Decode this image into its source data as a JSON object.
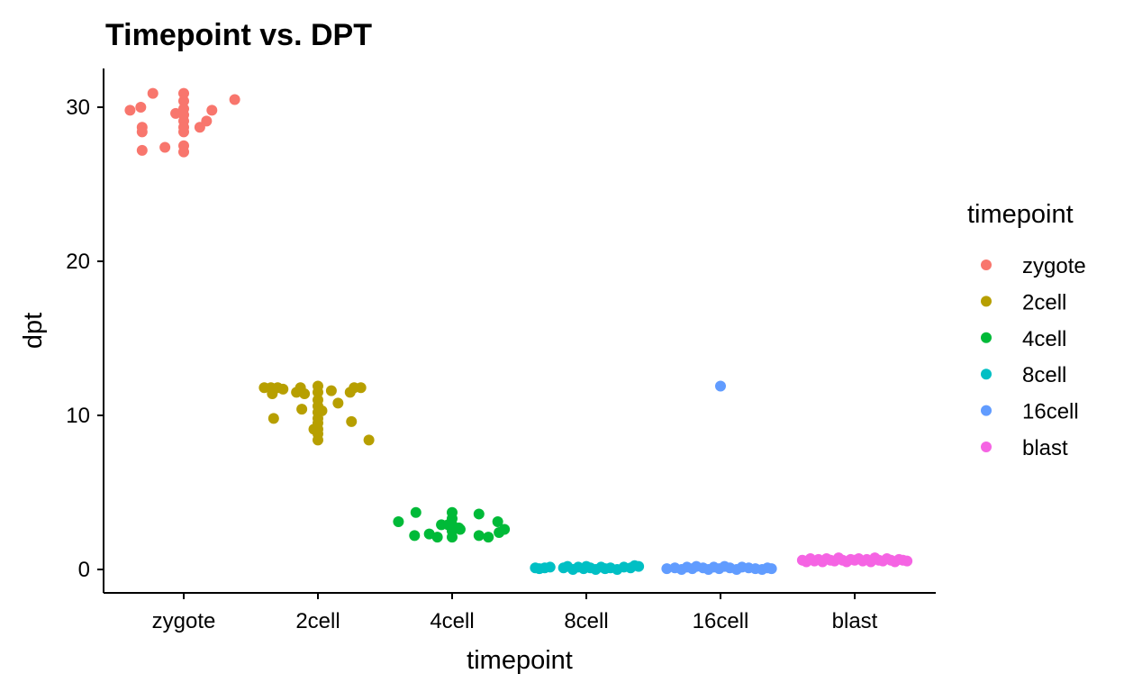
{
  "chart_data": {
    "type": "scatter",
    "title": "Timepoint vs. DPT",
    "xlabel": "timepoint",
    "ylabel": "dpt",
    "categories": [
      "zygote",
      "2cell",
      "4cell",
      "8cell",
      "16cell",
      "blast"
    ],
    "ylim": [
      -1.5,
      32.5
    ],
    "yticks": [
      0,
      10,
      20,
      30
    ],
    "grid": false,
    "legend": {
      "title": "timepoint",
      "placement": "right",
      "entries": [
        "zygote",
        "2cell",
        "4cell",
        "8cell",
        "16cell",
        "blast"
      ]
    },
    "colors": {
      "zygote": "#F8766D",
      "2cell": "#B79F00",
      "4cell": "#00BA38",
      "8cell": "#00BFC4",
      "16cell": "#619CFF",
      "blast": "#F564E3"
    },
    "series": [
      {
        "name": "zygote",
        "points": [
          {
            "x": -0.4,
            "y": 29.8
          },
          {
            "x": -0.32,
            "y": 30.0
          },
          {
            "x": -0.31,
            "y": 28.4
          },
          {
            "x": -0.31,
            "y": 28.7
          },
          {
            "x": -0.31,
            "y": 27.2
          },
          {
            "x": -0.23,
            "y": 30.9
          },
          {
            "x": -0.14,
            "y": 27.4
          },
          {
            "x": -0.06,
            "y": 29.6
          },
          {
            "x": 0.0,
            "y": 30.9
          },
          {
            "x": 0.0,
            "y": 30.4
          },
          {
            "x": 0.0,
            "y": 29.9
          },
          {
            "x": 0.0,
            "y": 29.5
          },
          {
            "x": 0.0,
            "y": 29.1
          },
          {
            "x": 0.0,
            "y": 28.7
          },
          {
            "x": 0.0,
            "y": 28.4
          },
          {
            "x": 0.0,
            "y": 27.5
          },
          {
            "x": 0.0,
            "y": 27.1
          },
          {
            "x": 0.12,
            "y": 28.7
          },
          {
            "x": 0.17,
            "y": 29.1
          },
          {
            "x": 0.21,
            "y": 29.8
          },
          {
            "x": 0.38,
            "y": 30.5
          }
        ]
      },
      {
        "name": "2cell",
        "points": [
          {
            "x": -0.4,
            "y": 11.8
          },
          {
            "x": -0.35,
            "y": 11.8
          },
          {
            "x": -0.34,
            "y": 11.4
          },
          {
            "x": -0.33,
            "y": 9.8
          },
          {
            "x": -0.3,
            "y": 11.8
          },
          {
            "x": -0.26,
            "y": 11.7
          },
          {
            "x": -0.16,
            "y": 11.5
          },
          {
            "x": -0.13,
            "y": 11.8
          },
          {
            "x": -0.12,
            "y": 10.4
          },
          {
            "x": -0.1,
            "y": 11.4
          },
          {
            "x": 0.0,
            "y": 11.9
          },
          {
            "x": 0.0,
            "y": 11.5
          },
          {
            "x": 0.0,
            "y": 11.0
          },
          {
            "x": 0.0,
            "y": 10.6
          },
          {
            "x": 0.0,
            "y": 10.2
          },
          {
            "x": 0.0,
            "y": 9.8
          },
          {
            "x": 0.0,
            "y": 9.5
          },
          {
            "x": 0.0,
            "y": 9.1
          },
          {
            "x": 0.0,
            "y": 8.8
          },
          {
            "x": 0.0,
            "y": 8.4
          },
          {
            "x": -0.03,
            "y": 9.1
          },
          {
            "x": 0.03,
            "y": 10.3
          },
          {
            "x": 0.1,
            "y": 11.6
          },
          {
            "x": 0.15,
            "y": 10.8
          },
          {
            "x": 0.24,
            "y": 11.5
          },
          {
            "x": 0.25,
            "y": 9.6
          },
          {
            "x": 0.27,
            "y": 11.8
          },
          {
            "x": 0.32,
            "y": 11.8
          },
          {
            "x": 0.38,
            "y": 8.4
          }
        ]
      },
      {
        "name": "4cell",
        "points": [
          {
            "x": -0.4,
            "y": 3.1
          },
          {
            "x": -0.28,
            "y": 2.2
          },
          {
            "x": -0.27,
            "y": 3.7
          },
          {
            "x": -0.17,
            "y": 2.3
          },
          {
            "x": -0.11,
            "y": 2.1
          },
          {
            "x": -0.08,
            "y": 2.9
          },
          {
            "x": -0.03,
            "y": 2.9
          },
          {
            "x": 0.0,
            "y": 3.7
          },
          {
            "x": 0.0,
            "y": 3.3
          },
          {
            "x": 0.0,
            "y": 2.9
          },
          {
            "x": 0.0,
            "y": 2.5
          },
          {
            "x": 0.0,
            "y": 2.1
          },
          {
            "x": 0.05,
            "y": 2.7
          },
          {
            "x": 0.06,
            "y": 2.6
          },
          {
            "x": 0.2,
            "y": 3.6
          },
          {
            "x": 0.2,
            "y": 2.2
          },
          {
            "x": 0.27,
            "y": 2.1
          },
          {
            "x": 0.34,
            "y": 3.1
          },
          {
            "x": 0.35,
            "y": 2.4
          },
          {
            "x": 0.39,
            "y": 2.6
          }
        ]
      },
      {
        "name": "8cell",
        "points": [
          {
            "x": -0.38,
            "y": 0.1
          },
          {
            "x": -0.35,
            "y": 0.05
          },
          {
            "x": -0.31,
            "y": 0.1
          },
          {
            "x": -0.27,
            "y": 0.15
          },
          {
            "x": -0.17,
            "y": 0.1
          },
          {
            "x": -0.14,
            "y": 0.2
          },
          {
            "x": -0.1,
            "y": 0.0
          },
          {
            "x": -0.06,
            "y": 0.15
          },
          {
            "x": -0.02,
            "y": 0.05
          },
          {
            "x": 0.0,
            "y": 0.2
          },
          {
            "x": 0.03,
            "y": 0.1
          },
          {
            "x": 0.07,
            "y": 0.0
          },
          {
            "x": 0.11,
            "y": 0.15
          },
          {
            "x": 0.14,
            "y": 0.05
          },
          {
            "x": 0.18,
            "y": 0.1
          },
          {
            "x": 0.23,
            "y": 0.0
          },
          {
            "x": 0.28,
            "y": 0.15
          },
          {
            "x": 0.33,
            "y": 0.1
          },
          {
            "x": 0.36,
            "y": 0.25
          },
          {
            "x": 0.39,
            "y": 0.2
          }
        ]
      },
      {
        "name": "16cell",
        "points": [
          {
            "x": -0.4,
            "y": 0.05
          },
          {
            "x": -0.34,
            "y": 0.1
          },
          {
            "x": -0.29,
            "y": 0.0
          },
          {
            "x": -0.25,
            "y": 0.15
          },
          {
            "x": -0.21,
            "y": 0.05
          },
          {
            "x": -0.18,
            "y": 0.2
          },
          {
            "x": -0.13,
            "y": 0.1
          },
          {
            "x": -0.09,
            "y": 0.0
          },
          {
            "x": -0.05,
            "y": 0.15
          },
          {
            "x": -0.01,
            "y": 0.05
          },
          {
            "x": 0.0,
            "y": 11.9
          },
          {
            "x": 0.03,
            "y": 0.2
          },
          {
            "x": 0.07,
            "y": 0.1
          },
          {
            "x": 0.12,
            "y": 0.0
          },
          {
            "x": 0.16,
            "y": 0.15
          },
          {
            "x": 0.21,
            "y": 0.1
          },
          {
            "x": 0.26,
            "y": 0.05
          },
          {
            "x": 0.31,
            "y": 0.0
          },
          {
            "x": 0.35,
            "y": 0.1
          },
          {
            "x": 0.38,
            "y": 0.05
          }
        ]
      },
      {
        "name": "blast",
        "points": [
          {
            "x": -0.39,
            "y": 0.6
          },
          {
            "x": -0.36,
            "y": 0.5
          },
          {
            "x": -0.33,
            "y": 0.7
          },
          {
            "x": -0.3,
            "y": 0.55
          },
          {
            "x": -0.27,
            "y": 0.65
          },
          {
            "x": -0.24,
            "y": 0.5
          },
          {
            "x": -0.21,
            "y": 0.7
          },
          {
            "x": -0.18,
            "y": 0.6
          },
          {
            "x": -0.15,
            "y": 0.55
          },
          {
            "x": -0.12,
            "y": 0.75
          },
          {
            "x": -0.09,
            "y": 0.6
          },
          {
            "x": -0.06,
            "y": 0.5
          },
          {
            "x": -0.03,
            "y": 0.65
          },
          {
            "x": 0.0,
            "y": 0.6
          },
          {
            "x": 0.03,
            "y": 0.7
          },
          {
            "x": 0.06,
            "y": 0.55
          },
          {
            "x": 0.09,
            "y": 0.65
          },
          {
            "x": 0.12,
            "y": 0.5
          },
          {
            "x": 0.15,
            "y": 0.75
          },
          {
            "x": 0.18,
            "y": 0.6
          },
          {
            "x": 0.21,
            "y": 0.55
          },
          {
            "x": 0.24,
            "y": 0.7
          },
          {
            "x": 0.27,
            "y": 0.6
          },
          {
            "x": 0.3,
            "y": 0.5
          },
          {
            "x": 0.33,
            "y": 0.65
          },
          {
            "x": 0.36,
            "y": 0.6
          },
          {
            "x": 0.39,
            "y": 0.55
          }
        ]
      }
    ]
  }
}
